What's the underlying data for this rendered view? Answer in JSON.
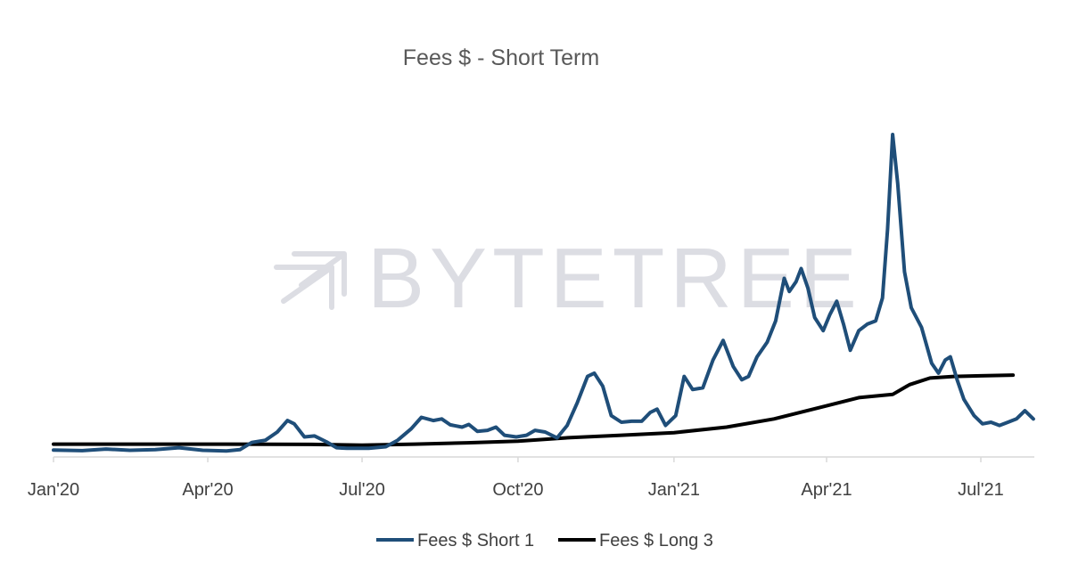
{
  "colors": {
    "short": "#1f4e79",
    "long": "#000000",
    "axis": "#d9d9d9",
    "watermark": "#dcdde3"
  },
  "watermark": {
    "text": "BYTETREE",
    "icon": "arrows-logo-icon"
  },
  "chart_data": {
    "type": "line",
    "title": "Fees $ - Short Term",
    "xlabel": "",
    "ylabel": "",
    "x_range": [
      "2020-01-01",
      "2021-08-05"
    ],
    "ylim": [
      0,
      100
    ],
    "grid": false,
    "legend_position": "bottom",
    "x_ticks": [
      {
        "date": "2020-01-01",
        "label": "Jan'20"
      },
      {
        "date": "2020-04-01",
        "label": "Apr'20"
      },
      {
        "date": "2020-07-01",
        "label": "Jul'20"
      },
      {
        "date": "2020-10-01",
        "label": "Oct'20"
      },
      {
        "date": "2021-01-01",
        "label": "Jan'21"
      },
      {
        "date": "2021-04-01",
        "label": "Apr'21"
      },
      {
        "date": "2021-07-01",
        "label": "Jul'21"
      }
    ],
    "series": [
      {
        "name": "Fees $ Short 1",
        "color": "#1f4e79",
        "points": [
          [
            "2020-01-01",
            0.5
          ],
          [
            "2020-01-18",
            0.3
          ],
          [
            "2020-02-01",
            0.8
          ],
          [
            "2020-02-15",
            0.4
          ],
          [
            "2020-03-01",
            0.6
          ],
          [
            "2020-03-15",
            1.2
          ],
          [
            "2020-03-29",
            0.4
          ],
          [
            "2020-04-12",
            0.2
          ],
          [
            "2020-04-20",
            0.6
          ],
          [
            "2020-04-27",
            2.8
          ],
          [
            "2020-05-05",
            3.5
          ],
          [
            "2020-05-12",
            6
          ],
          [
            "2020-05-18",
            9.5
          ],
          [
            "2020-05-22",
            8.5
          ],
          [
            "2020-05-28",
            4.5
          ],
          [
            "2020-06-03",
            4.8
          ],
          [
            "2020-06-10",
            3
          ],
          [
            "2020-06-16",
            1.2
          ],
          [
            "2020-06-22",
            1
          ],
          [
            "2020-07-05",
            1
          ],
          [
            "2020-07-15",
            1.5
          ],
          [
            "2020-07-22",
            3.5
          ],
          [
            "2020-07-30",
            7
          ],
          [
            "2020-08-05",
            10.5
          ],
          [
            "2020-08-12",
            9.5
          ],
          [
            "2020-08-17",
            10
          ],
          [
            "2020-08-22",
            8.2
          ],
          [
            "2020-08-29",
            7.5
          ],
          [
            "2020-09-02",
            8.3
          ],
          [
            "2020-09-07",
            6.2
          ],
          [
            "2020-09-13",
            6.5
          ],
          [
            "2020-09-18",
            7.5
          ],
          [
            "2020-09-23",
            5
          ],
          [
            "2020-09-30",
            4.5
          ],
          [
            "2020-10-06",
            5
          ],
          [
            "2020-10-11",
            6.5
          ],
          [
            "2020-10-17",
            6
          ],
          [
            "2020-10-24",
            4.2
          ],
          [
            "2020-10-30",
            8
          ],
          [
            "2020-11-05",
            15
          ],
          [
            "2020-11-11",
            23
          ],
          [
            "2020-11-15",
            24
          ],
          [
            "2020-11-20",
            20
          ],
          [
            "2020-11-25",
            11
          ],
          [
            "2020-12-01",
            9
          ],
          [
            "2020-12-07",
            9.3
          ],
          [
            "2020-12-13",
            9.3
          ],
          [
            "2020-12-18",
            12
          ],
          [
            "2020-12-22",
            13
          ],
          [
            "2020-12-27",
            8
          ],
          [
            "2021-01-02",
            11
          ],
          [
            "2021-01-07",
            23
          ],
          [
            "2021-01-12",
            19
          ],
          [
            "2021-01-18",
            19.5
          ],
          [
            "2021-01-24",
            28
          ],
          [
            "2021-01-30",
            34
          ],
          [
            "2021-02-05",
            26
          ],
          [
            "2021-02-10",
            22
          ],
          [
            "2021-02-14",
            23
          ],
          [
            "2021-02-19",
            29
          ],
          [
            "2021-02-25",
            33.5
          ],
          [
            "2021-03-02",
            40
          ],
          [
            "2021-03-07",
            53
          ],
          [
            "2021-03-10",
            49
          ],
          [
            "2021-03-14",
            52
          ],
          [
            "2021-03-17",
            56
          ],
          [
            "2021-03-21",
            50
          ],
          [
            "2021-03-25",
            41
          ],
          [
            "2021-03-30",
            37
          ],
          [
            "2021-04-03",
            42
          ],
          [
            "2021-04-07",
            46
          ],
          [
            "2021-04-11",
            39
          ],
          [
            "2021-04-15",
            31
          ],
          [
            "2021-04-20",
            37
          ],
          [
            "2021-04-25",
            39
          ],
          [
            "2021-04-30",
            40
          ],
          [
            "2021-05-04",
            47
          ],
          [
            "2021-05-07",
            68
          ],
          [
            "2021-05-10",
            97
          ],
          [
            "2021-05-13",
            82
          ],
          [
            "2021-05-17",
            55
          ],
          [
            "2021-05-21",
            44
          ],
          [
            "2021-05-27",
            38
          ],
          [
            "2021-06-02",
            27
          ],
          [
            "2021-06-06",
            24
          ],
          [
            "2021-06-10",
            28
          ],
          [
            "2021-06-13",
            29
          ],
          [
            "2021-06-17",
            22
          ],
          [
            "2021-06-21",
            16
          ],
          [
            "2021-06-27",
            11
          ],
          [
            "2021-07-02",
            8.5
          ],
          [
            "2021-07-07",
            9
          ],
          [
            "2021-07-12",
            8
          ],
          [
            "2021-07-17",
            9
          ],
          [
            "2021-07-22",
            10
          ],
          [
            "2021-07-27",
            12.5
          ],
          [
            "2021-08-01",
            10
          ],
          [
            "2021-08-05",
            6
          ],
          [
            "2021-08-10",
            3.5
          ],
          [
            "2021-08-15",
            2
          ],
          [
            "2021-08-20",
            2.5
          ],
          [
            "2021-08-28",
            2.3
          ]
        ]
      },
      {
        "name": "Fees $ Long 3",
        "color": "#000000",
        "points": [
          [
            "2020-01-01",
            2.3
          ],
          [
            "2020-04-01",
            2.3
          ],
          [
            "2020-06-01",
            2.2
          ],
          [
            "2020-07-01",
            2
          ],
          [
            "2020-08-01",
            2.3
          ],
          [
            "2020-09-01",
            2.7
          ],
          [
            "2020-10-01",
            3.2
          ],
          [
            "2020-11-01",
            4.3
          ],
          [
            "2020-12-01",
            5
          ],
          [
            "2021-01-01",
            5.8
          ],
          [
            "2021-02-01",
            7.5
          ],
          [
            "2021-03-01",
            10
          ],
          [
            "2021-04-01",
            14
          ],
          [
            "2021-04-20",
            16.5
          ],
          [
            "2021-05-10",
            17.5
          ],
          [
            "2021-05-20",
            20.5
          ],
          [
            "2021-06-01",
            22.5
          ],
          [
            "2021-06-15",
            23
          ],
          [
            "2021-07-01",
            23.2
          ],
          [
            "2021-07-20",
            23.4
          ],
          [
            "2021-08-05",
            23.5
          ],
          [
            "2021-08-28",
            23.3
          ]
        ]
      }
    ]
  }
}
